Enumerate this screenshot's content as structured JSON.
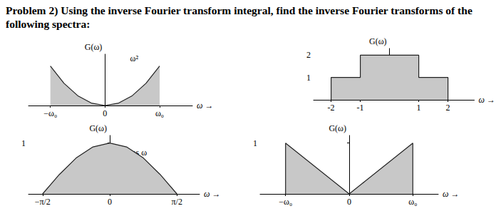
{
  "problem": {
    "label": "Problem 2)",
    "text": "Using the inverse Fourier transform integral, find the inverse Fourier transforms of the following spectra:"
  },
  "chart_data": [
    {
      "type": "area",
      "color": "#c8c8c8",
      "x": [
        -1,
        -0.75,
        -0.5,
        -0.25,
        0,
        0.25,
        0.5,
        0.75,
        1
      ],
      "values": [
        1,
        0.5625,
        0.25,
        0.0625,
        0,
        0.0625,
        0.25,
        0.5625,
        1
      ],
      "xlim": [
        -1.4,
        1.6
      ],
      "ylim": [
        0,
        1.3
      ],
      "xticks": [
        {
          "value": -1,
          "label": "−ω₀"
        },
        0,
        {
          "value": 1,
          "label": "ω₀"
        }
      ],
      "yticks": [],
      "x_label": "ω →",
      "y_label": "G(ω)",
      "annotations": [
        "ω²"
      ]
    },
    {
      "type": "area",
      "color": "#c8c8c8",
      "x": [
        -2,
        -2,
        -1,
        -1,
        1,
        1,
        2,
        2
      ],
      "values": [
        0,
        1,
        1,
        2,
        2,
        1,
        1,
        0
      ],
      "xlim": [
        -2.6,
        2.9
      ],
      "ylim": [
        0,
        2.3
      ],
      "xticks": [
        -2,
        -1,
        1,
        2
      ],
      "yticks": [
        1,
        2
      ],
      "x_label": "ω →",
      "y_label": "G(ω)",
      "annotations": []
    },
    {
      "type": "area",
      "color": "#c8c8c8",
      "x": [
        -1.5708,
        -1.1781,
        -0.7854,
        -0.3927,
        0,
        0.3927,
        0.7854,
        1.1781,
        1.5708
      ],
      "values": [
        0,
        0.3827,
        0.7071,
        0.9239,
        1,
        0.9239,
        0.7071,
        0.3827,
        0
      ],
      "xlim": [
        -1.9,
        2.1
      ],
      "ylim": [
        0,
        1.15
      ],
      "xticks": [
        {
          "value": -1.5708,
          "label": "−π/2"
        },
        0,
        {
          "value": 1.5708,
          "label": "π/2"
        }
      ],
      "yticks": [
        1
      ],
      "x_label": "ω →",
      "y_label": "G(ω)",
      "annotations": [
        "cos ω"
      ]
    },
    {
      "type": "area",
      "color": "#c8c8c8",
      "x": [
        -1,
        -1,
        0,
        1,
        1
      ],
      "values": [
        0,
        1,
        0,
        1,
        0
      ],
      "xlim": [
        -1.4,
        1.4
      ],
      "ylim": [
        0,
        1.15
      ],
      "xticks": [
        {
          "value": -1,
          "label": "−ω₀"
        },
        0,
        {
          "value": 1,
          "label": "ω₀"
        }
      ],
      "yticks": [
        1
      ],
      "x_label": "ω →",
      "y_label": "G(ω)",
      "annotations": []
    }
  ]
}
